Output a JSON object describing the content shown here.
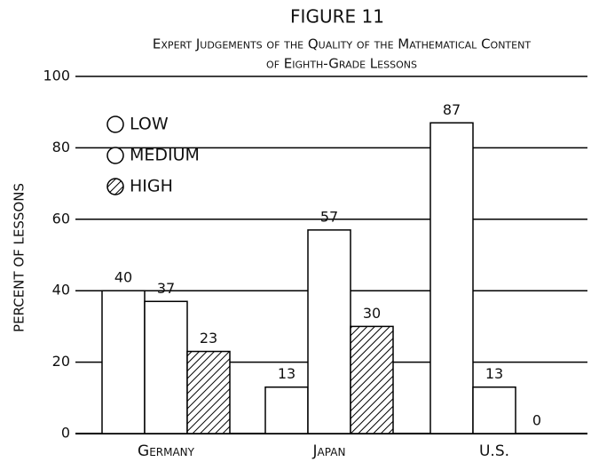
{
  "chart_data": {
    "type": "bar",
    "title": "FIGURE 11",
    "subtitle": [
      "Expert Judgements of the Quality of the Mathematical Content",
      "of Eighth-Grade Lessons"
    ],
    "y_label": "PERCENT OF LESSONS",
    "categories": [
      "Germany",
      "Japan",
      "U.S."
    ],
    "series": [
      {
        "name": "LOW",
        "color": "#ffffff",
        "values": [
          40,
          13,
          87
        ]
      },
      {
        "name": "MEDIUM",
        "color": "#ffffff",
        "values": [
          37,
          57,
          13
        ]
      },
      {
        "name": "HIGH",
        "color": "#000000",
        "hatch": true,
        "values": [
          23,
          30,
          0
        ]
      }
    ],
    "ylim": [
      0,
      100
    ],
    "yticks": [
      0,
      20,
      40,
      60,
      80,
      100
    ],
    "grid": true,
    "legend": "top-left"
  }
}
